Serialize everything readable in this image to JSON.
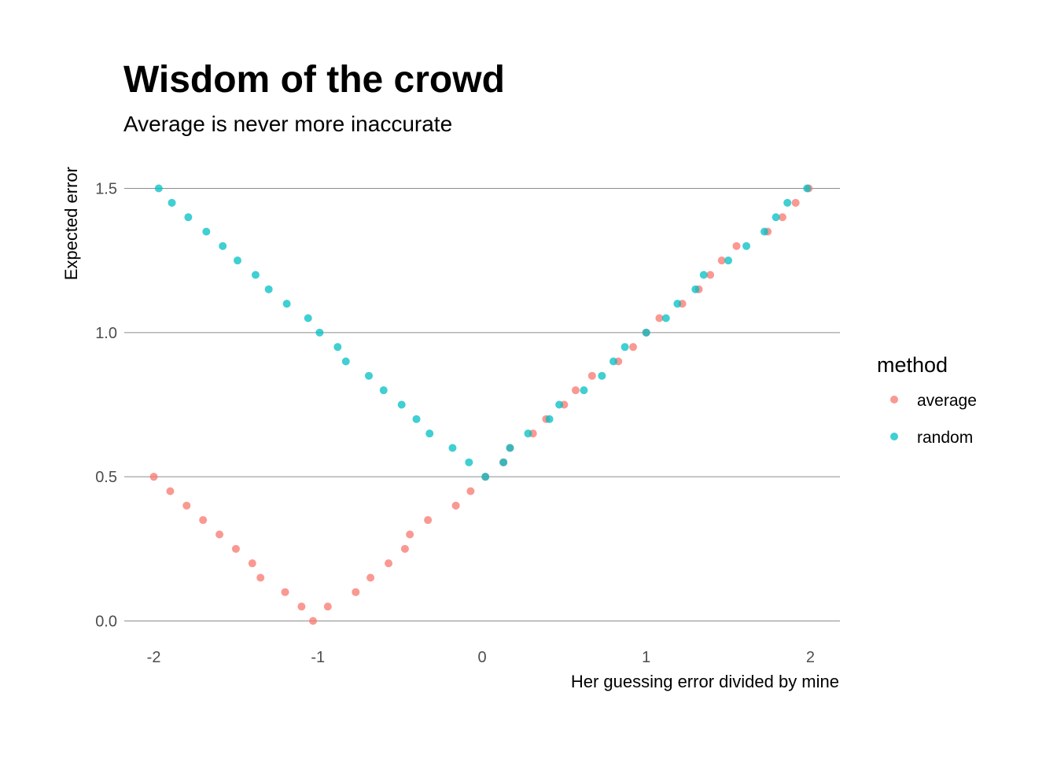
{
  "chart_data": {
    "type": "scatter",
    "title": "Wisdom of the crowd",
    "subtitle": "Average is never more inaccurate",
    "xlabel": "Her guessing error divided by mine",
    "ylabel": "Expected error",
    "xlim": [
      -2.18,
      2.18
    ],
    "ylim": [
      -0.075,
      1.575
    ],
    "x_ticks": [
      -2,
      -1,
      0,
      1,
      2
    ],
    "x_tick_labels": [
      "-2",
      "-1",
      "0",
      "1",
      "2"
    ],
    "y_ticks": [
      0.0,
      0.5,
      1.0,
      1.5
    ],
    "y_tick_labels": [
      "0.0",
      "0.5",
      "1.0",
      "1.5"
    ],
    "grid": {
      "major_y": true,
      "major_x": false
    },
    "legend": {
      "title": "method",
      "placement": "right"
    },
    "series": [
      {
        "name": "average",
        "color": "#F8766D",
        "points": [
          [
            -2.0,
            0.5
          ],
          [
            -1.9,
            0.45
          ],
          [
            -1.8,
            0.4
          ],
          [
            -1.7,
            0.35
          ],
          [
            -1.6,
            0.3
          ],
          [
            -1.5,
            0.25
          ],
          [
            -1.4,
            0.2
          ],
          [
            -1.35,
            0.15
          ],
          [
            -1.2,
            0.1
          ],
          [
            -1.1,
            0.05
          ],
          [
            -1.03,
            0.0
          ],
          [
            -0.94,
            0.05
          ],
          [
            -0.77,
            0.1
          ],
          [
            -0.68,
            0.15
          ],
          [
            -0.57,
            0.2
          ],
          [
            -0.47,
            0.25
          ],
          [
            -0.44,
            0.3
          ],
          [
            -0.33,
            0.35
          ],
          [
            -0.16,
            0.4
          ],
          [
            -0.07,
            0.45
          ],
          [
            0.02,
            0.5
          ],
          [
            0.13,
            0.55
          ],
          [
            0.17,
            0.6
          ],
          [
            0.31,
            0.65
          ],
          [
            0.39,
            0.7
          ],
          [
            0.5,
            0.75
          ],
          [
            0.57,
            0.8
          ],
          [
            0.67,
            0.85
          ],
          [
            0.83,
            0.9
          ],
          [
            0.92,
            0.95
          ],
          [
            1.0,
            1.0
          ],
          [
            1.08,
            1.05
          ],
          [
            1.22,
            1.1
          ],
          [
            1.32,
            1.15
          ],
          [
            1.39,
            1.2
          ],
          [
            1.46,
            1.25
          ],
          [
            1.55,
            1.3
          ],
          [
            1.74,
            1.35
          ],
          [
            1.83,
            1.4
          ],
          [
            1.91,
            1.45
          ],
          [
            1.99,
            1.5
          ]
        ]
      },
      {
        "name": "random",
        "color": "#00BFC4",
        "points": [
          [
            -1.97,
            1.5
          ],
          [
            -1.89,
            1.45
          ],
          [
            -1.79,
            1.4
          ],
          [
            -1.68,
            1.35
          ],
          [
            -1.58,
            1.3
          ],
          [
            -1.49,
            1.25
          ],
          [
            -1.38,
            1.2
          ],
          [
            -1.3,
            1.15
          ],
          [
            -1.19,
            1.1
          ],
          [
            -1.06,
            1.05
          ],
          [
            -0.99,
            1.0
          ],
          [
            -0.88,
            0.95
          ],
          [
            -0.83,
            0.9
          ],
          [
            -0.69,
            0.85
          ],
          [
            -0.6,
            0.8
          ],
          [
            -0.49,
            0.75
          ],
          [
            -0.4,
            0.7
          ],
          [
            -0.32,
            0.65
          ],
          [
            -0.18,
            0.6
          ],
          [
            -0.08,
            0.55
          ],
          [
            0.02,
            0.5
          ],
          [
            0.13,
            0.55
          ],
          [
            0.17,
            0.6
          ],
          [
            0.28,
            0.65
          ],
          [
            0.41,
            0.7
          ],
          [
            0.47,
            0.75
          ],
          [
            0.62,
            0.8
          ],
          [
            0.73,
            0.85
          ],
          [
            0.8,
            0.9
          ],
          [
            0.87,
            0.95
          ],
          [
            1.0,
            1.0
          ],
          [
            1.12,
            1.05
          ],
          [
            1.19,
            1.1
          ],
          [
            1.3,
            1.15
          ],
          [
            1.35,
            1.2
          ],
          [
            1.5,
            1.25
          ],
          [
            1.61,
            1.3
          ],
          [
            1.72,
            1.35
          ],
          [
            1.79,
            1.4
          ],
          [
            1.86,
            1.45
          ],
          [
            1.98,
            1.5
          ]
        ]
      }
    ]
  }
}
